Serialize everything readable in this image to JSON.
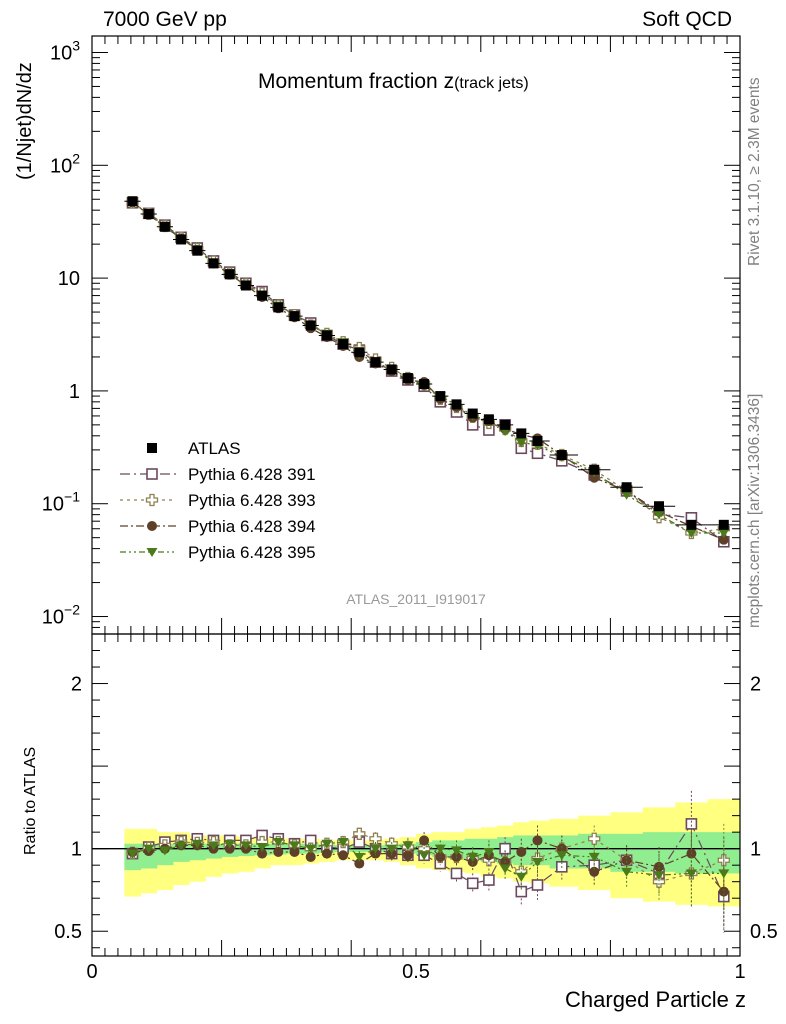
{
  "header": {
    "left": "7000 GeV pp",
    "right": "Soft QCD"
  },
  "side_labels": {
    "rivet": "Rivet 3.1.10, ≥ 2.3M events",
    "mcplots": "mcplots.cern.ch [arXiv:1306.3436]"
  },
  "chart_data": {
    "type": "scatter",
    "title": "Momentum fraction",
    "title_symbol": "z",
    "title_subscript": "(track jets)",
    "watermark": "ATLAS_2011_I919017",
    "xlabel": "Charged Particle z",
    "ylabel": "(1/Njet)dN/dz",
    "ratio_ylabel": "Ratio to ATLAS",
    "xlim": [
      0,
      1
    ],
    "ylim": [
      0.007,
      1400
    ],
    "ylog": true,
    "ratio_ylim": [
      0.35,
      2.3
    ],
    "xticks": [
      {
        "v": 0,
        "label": "0"
      },
      {
        "v": 0.5,
        "label": "0.5"
      },
      {
        "v": 1,
        "label": "1"
      }
    ],
    "ytick_labels": [
      {
        "v": 1000,
        "base": "10",
        "exp": "3"
      },
      {
        "v": 100,
        "base": "10",
        "exp": "2"
      },
      {
        "v": 10,
        "base": "10",
        "exp": ""
      },
      {
        "v": 1,
        "base": "1",
        "exp": ""
      },
      {
        "v": 0.1,
        "base": "10",
        "exp": "−1"
      },
      {
        "v": 0.01,
        "base": "10",
        "exp": "−2"
      }
    ],
    "ratio_ticks": [
      {
        "v": 0.5,
        "label": "0.5"
      },
      {
        "v": 1,
        "label": "1"
      },
      {
        "v": 2,
        "label": "2"
      }
    ],
    "legend_position": "bottom-left",
    "x": [
      0.0625,
      0.0875,
      0.1125,
      0.1375,
      0.1625,
      0.1875,
      0.2125,
      0.2375,
      0.2625,
      0.2875,
      0.3125,
      0.3375,
      0.3625,
      0.3875,
      0.4125,
      0.4375,
      0.4625,
      0.4875,
      0.5125,
      0.5375,
      0.5625,
      0.5875,
      0.6125,
      0.6375,
      0.6625,
      0.6875,
      0.725,
      0.775,
      0.825,
      0.875,
      0.925,
      0.975
    ],
    "series": [
      {
        "name": "ATLAS",
        "color": "#000000",
        "marker": "square-filled",
        "dash": "",
        "values": [
          48,
          37,
          28.5,
          22,
          17.5,
          13.5,
          10.8,
          8.6,
          7.0,
          5.5,
          4.6,
          3.8,
          3.1,
          2.6,
          2.2,
          1.8,
          1.55,
          1.3,
          1.15,
          0.9,
          0.76,
          0.63,
          0.56,
          0.5,
          0.42,
          0.36,
          0.27,
          0.2,
          0.14,
          0.095,
          0.065,
          0.065
        ]
      },
      {
        "name": "Pythia 6.428 391",
        "color": "#6b4a5e",
        "marker": "square-open",
        "dash": "10,4,2,4",
        "values": [
          46.5,
          37.5,
          29.5,
          23,
          18.5,
          14.2,
          11.3,
          9.0,
          7.6,
          5.8,
          4.7,
          4.0,
          3.1,
          2.6,
          2.3,
          1.8,
          1.5,
          1.25,
          1.1,
          0.8,
          0.65,
          0.5,
          0.45,
          0.5,
          0.31,
          0.28,
          0.24,
          0.18,
          0.13,
          0.081,
          0.075,
          0.046
        ]
      },
      {
        "name": "Pythia 6.428 393",
        "color": "#8f8050",
        "marker": "cross-open",
        "dash": "3,4",
        "values": [
          46.8,
          37.2,
          29.0,
          22.8,
          18.1,
          14.0,
          11.0,
          8.8,
          7.3,
          5.7,
          4.7,
          3.8,
          3.2,
          2.7,
          2.4,
          1.9,
          1.6,
          1.3,
          1.15,
          0.85,
          0.72,
          0.59,
          0.52,
          0.46,
          0.36,
          0.34,
          0.27,
          0.2,
          0.13,
          0.076,
          0.055,
          0.06
        ]
      },
      {
        "name": "Pythia 6.428 394",
        "color": "#5e4028",
        "marker": "circle-filled",
        "dash": "8,3,2,3",
        "values": [
          47.0,
          36.5,
          28.5,
          22.5,
          17.8,
          13.5,
          10.8,
          8.6,
          6.8,
          5.4,
          4.5,
          3.6,
          3.0,
          2.5,
          2.0,
          1.75,
          1.5,
          1.25,
          1.2,
          0.85,
          0.72,
          0.58,
          0.54,
          0.46,
          0.41,
          0.38,
          0.27,
          0.17,
          0.13,
          0.085,
          0.063,
          0.048
        ]
      },
      {
        "name": "Pythia 6.428 395",
        "color": "#4a7a1a",
        "marker": "triangle-down-filled",
        "dash": "6,3,2,3,2,3",
        "values": [
          46.5,
          37.0,
          28.2,
          22.5,
          18.0,
          13.8,
          11.1,
          8.8,
          7.1,
          5.7,
          4.7,
          3.8,
          3.2,
          2.7,
          2.1,
          1.8,
          1.55,
          1.32,
          1.1,
          0.9,
          0.75,
          0.6,
          0.55,
          0.44,
          0.35,
          0.33,
          0.26,
          0.19,
          0.12,
          0.08,
          0.055,
          0.055
        ]
      }
    ],
    "ratios": {
      "Pythia 6.428 391": [
        0.97,
        1.01,
        1.04,
        1.05,
        1.06,
        1.05,
        1.05,
        1.05,
        1.08,
        1.06,
        1.03,
        1.05,
        1.01,
        1.0,
        1.04,
        1.0,
        0.97,
        0.96,
        0.96,
        0.91,
        0.85,
        0.79,
        0.81,
        1.0,
        0.74,
        0.78,
        0.89,
        0.9,
        0.93,
        0.85,
        1.15,
        0.71
      ],
      "Pythia 6.428 393": [
        0.975,
        1.005,
        1.02,
        1.04,
        1.035,
        1.04,
        1.02,
        1.02,
        1.04,
        1.04,
        1.02,
        1.0,
        1.03,
        1.04,
        1.09,
        1.06,
        1.03,
        1.01,
        1.0,
        0.95,
        0.95,
        0.94,
        0.93,
        0.92,
        0.86,
        0.94,
        1.0,
        1.06,
        0.93,
        0.8,
        0.85,
        0.93
      ],
      "Pythia 6.428 394": [
        0.98,
        0.985,
        1.0,
        1.02,
        1.02,
        1.0,
        1.0,
        1.0,
        0.97,
        0.98,
        0.98,
        0.95,
        0.97,
        0.96,
        0.91,
        0.97,
        0.97,
        0.96,
        1.05,
        0.95,
        0.95,
        0.92,
        0.96,
        0.92,
        0.98,
        1.05,
        1.0,
        0.86,
        0.93,
        0.89,
        0.97,
        0.74
      ],
      "Pythia 6.428 395": [
        0.97,
        1.0,
        0.99,
        1.02,
        1.03,
        1.02,
        1.03,
        1.02,
        1.01,
        1.04,
        1.02,
        1.0,
        1.03,
        1.04,
        0.95,
        1.0,
        1.0,
        1.02,
        0.96,
        1.0,
        0.99,
        0.95,
        0.98,
        0.88,
        0.83,
        0.92,
        0.96,
        0.95,
        0.86,
        0.84,
        0.85,
        0.85
      ]
    },
    "ratio_errors": [
      0.02,
      0.02,
      0.02,
      0.02,
      0.02,
      0.02,
      0.02,
      0.02,
      0.025,
      0.025,
      0.025,
      0.03,
      0.03,
      0.03,
      0.035,
      0.04,
      0.04,
      0.045,
      0.05,
      0.05,
      0.06,
      0.06,
      0.07,
      0.07,
      0.08,
      0.09,
      0.08,
      0.08,
      0.09,
      0.12,
      0.2,
      0.22
    ],
    "band_inner": {
      "lo": [
        0.87,
        0.88,
        0.9,
        0.92,
        0.93,
        0.94,
        0.95,
        0.955,
        0.96,
        0.965,
        0.97,
        0.97,
        0.975,
        0.98,
        0.98,
        0.98,
        0.975,
        0.97,
        0.96,
        0.95,
        0.94,
        0.93,
        0.92,
        0.91,
        0.9,
        0.9,
        0.88,
        0.88,
        0.86,
        0.86,
        0.85,
        0.85
      ],
      "hi": [
        1.03,
        1.03,
        1.03,
        1.03,
        1.03,
        1.03,
        1.03,
        1.03,
        1.03,
        1.03,
        1.03,
        1.03,
        1.025,
        1.02,
        1.02,
        1.02,
        1.025,
        1.03,
        1.04,
        1.05,
        1.05,
        1.06,
        1.06,
        1.07,
        1.08,
        1.08,
        1.08,
        1.09,
        1.09,
        1.1,
        1.1,
        1.1
      ]
    },
    "band_outer": {
      "lo": [
        0.71,
        0.73,
        0.75,
        0.78,
        0.8,
        0.83,
        0.85,
        0.86,
        0.88,
        0.9,
        0.9,
        0.91,
        0.92,
        0.93,
        0.93,
        0.93,
        0.92,
        0.9,
        0.88,
        0.87,
        0.86,
        0.85,
        0.83,
        0.82,
        0.8,
        0.79,
        0.77,
        0.75,
        0.7,
        0.68,
        0.66,
        0.65
      ],
      "hi": [
        1.12,
        1.12,
        1.1,
        1.1,
        1.08,
        1.08,
        1.08,
        1.07,
        1.07,
        1.06,
        1.06,
        1.06,
        1.05,
        1.05,
        1.05,
        1.05,
        1.06,
        1.07,
        1.09,
        1.1,
        1.1,
        1.12,
        1.13,
        1.14,
        1.16,
        1.17,
        1.18,
        1.2,
        1.22,
        1.25,
        1.28,
        1.3
      ]
    },
    "band_colors": {
      "inner": "#90ee90",
      "outer": "#ffff80"
    }
  }
}
